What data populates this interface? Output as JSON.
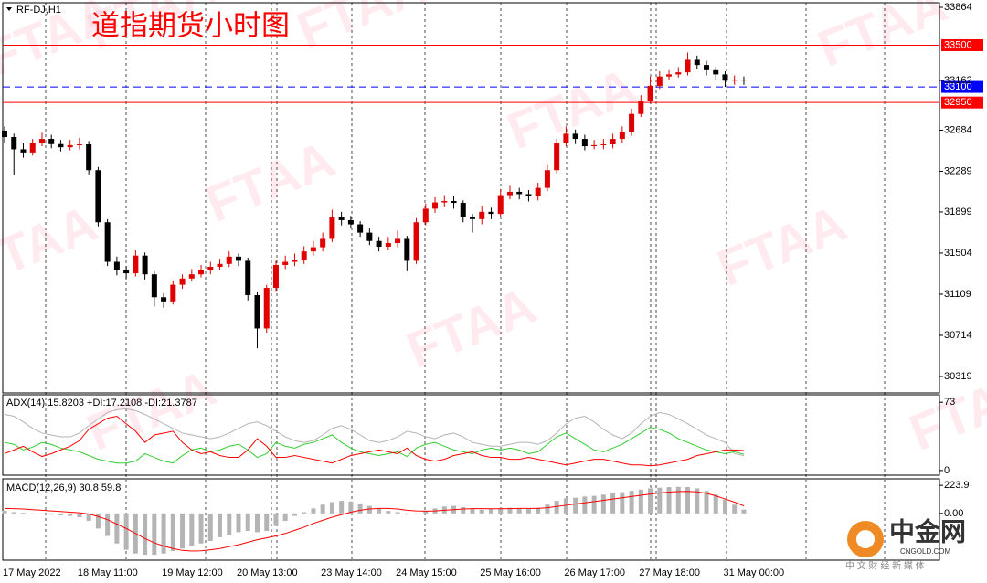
{
  "chart_data": [
    {
      "type": "candlestick",
      "title": "道指期货小时图",
      "subtitle": "RF-DJ,H1",
      "up_color": "#e00000",
      "down_color": "#000000",
      "categories": [
        "17 May 2022",
        null,
        null,
        null,
        null,
        null,
        null,
        null,
        "18 May 11:00",
        null,
        null,
        null,
        null,
        null,
        null,
        null,
        null,
        "19 May 12:00",
        null,
        null,
        null,
        null,
        null,
        null,
        null,
        "20 May 13:00",
        null,
        null,
        null,
        null,
        null,
        null,
        null,
        null,
        "23 May 14:00",
        null,
        null,
        null,
        null,
        null,
        null,
        null,
        "24 May 15:00",
        null,
        null,
        null,
        null,
        null,
        null,
        null,
        null,
        "25 May 16:00",
        null,
        null,
        null,
        null,
        null,
        null,
        null,
        null,
        "26 May 17:00",
        null,
        null,
        null,
        null,
        null,
        null,
        null,
        "27 May 18:00",
        null,
        null,
        null,
        null,
        null,
        null,
        null,
        null,
        "31 May 00:00",
        null,
        null
      ],
      "open": [
        32680,
        32618,
        32500,
        32470,
        32560,
        32600,
        32550,
        32520,
        32540,
        32548,
        32300,
        31800,
        31420,
        31340,
        31310,
        31480,
        31300,
        31080,
        31040,
        31200,
        31260,
        31300,
        31340,
        31372,
        31400,
        31470,
        31430,
        31100,
        30780,
        31170,
        31390,
        31420,
        31440,
        31520,
        31560,
        31640,
        31846,
        31820,
        31780,
        31700,
        31620,
        31565,
        31600,
        31640,
        31430,
        31800,
        31930,
        31990,
        32004,
        31986,
        31850,
        31830,
        31900,
        31880,
        32060,
        32092,
        32070,
        32048,
        32130,
        32300,
        32560,
        32650,
        32600,
        32530,
        32540,
        32548,
        32600,
        32662,
        32840,
        32969,
        33110,
        33200,
        33220,
        33240,
        33360,
        33310,
        33260,
        33220,
        33160,
        33170
      ],
      "high": [
        32720,
        32650,
        32560,
        32600,
        32660,
        32640,
        32590,
        32590,
        32610,
        32580,
        32330,
        31830,
        31470,
        31380,
        31530,
        31510,
        31330,
        31120,
        31240,
        31300,
        31350,
        31390,
        31420,
        31450,
        31520,
        31500,
        31460,
        31130,
        31200,
        31430,
        31480,
        31500,
        31570,
        31620,
        31700,
        31920,
        31900,
        31860,
        31810,
        31740,
        31660,
        31660,
        31720,
        31670,
        31840,
        31980,
        32040,
        32060,
        32050,
        32010,
        31880,
        31960,
        31940,
        32120,
        32150,
        32130,
        32110,
        32180,
        32350,
        32600,
        32720,
        32690,
        32640,
        32590,
        32600,
        32650,
        32720,
        32890,
        33020,
        33200,
        33250,
        33260,
        33290,
        33430,
        33400,
        33350,
        33290,
        33250,
        33210,
        33200
      ],
      "low": [
        32560,
        32250,
        32420,
        32440,
        32530,
        32510,
        32480,
        32490,
        32500,
        32260,
        31760,
        31380,
        31290,
        31260,
        31280,
        31250,
        30990,
        30980,
        31010,
        31160,
        31230,
        31270,
        31300,
        31340,
        31370,
        31380,
        31050,
        30590,
        30740,
        31140,
        31350,
        31380,
        31400,
        31480,
        31520,
        31610,
        31770,
        31740,
        31660,
        31580,
        31520,
        31530,
        31560,
        31330,
        31400,
        31770,
        31890,
        31950,
        31930,
        31800,
        31700,
        31780,
        31830,
        31850,
        32020,
        32020,
        32000,
        32010,
        32100,
        32270,
        32530,
        32550,
        32490,
        32500,
        32500,
        32510,
        32560,
        32630,
        32810,
        32940,
        33080,
        33170,
        33190,
        33210,
        33270,
        33210,
        33170,
        33100,
        33120,
        33120
      ],
      "close": [
        32618,
        32500,
        32470,
        32560,
        32600,
        32550,
        32520,
        32540,
        32548,
        32300,
        31800,
        31420,
        31340,
        31310,
        31480,
        31300,
        31080,
        31040,
        31200,
        31260,
        31300,
        31340,
        31372,
        31400,
        31470,
        31430,
        31100,
        30780,
        31170,
        31390,
        31420,
        31440,
        31520,
        31560,
        31640,
        31846,
        31820,
        31780,
        31700,
        31620,
        31565,
        31600,
        31640,
        31430,
        31800,
        31930,
        31990,
        32004,
        31986,
        31850,
        31830,
        31900,
        31880,
        32060,
        32092,
        32070,
        32048,
        32130,
        32300,
        32560,
        32650,
        32600,
        32530,
        32540,
        32548,
        32600,
        32662,
        32840,
        32969,
        33110,
        33200,
        33220,
        33240,
        33360,
        33310,
        33260,
        33220,
        33160,
        33170,
        33162
      ],
      "ylim": [
        30161,
        33908
      ],
      "yticks": [
        33864,
        32684,
        32289,
        31899,
        31504,
        31109,
        30714,
        30319
      ],
      "levels": [
        {
          "value": 33500,
          "color": "#ff0000",
          "style": "solid"
        },
        {
          "value": 32950,
          "color": "#ff0000",
          "style": "solid"
        },
        {
          "value": 33100,
          "color": "#0000ff",
          "style": "dashed"
        }
      ],
      "last_price": 33162
    },
    {
      "type": "line",
      "title": "ADX(14) 15.8203 +DI:17.2108 -DI:21.3787",
      "ylim": [
        -5,
        81
      ],
      "yticks": [
        73,
        0
      ],
      "series": [
        {
          "color": "#b4b4b4",
          "values": [
            60,
            58,
            52,
            45,
            40,
            38,
            36,
            36,
            40,
            48,
            55,
            62,
            65,
            66,
            64,
            60,
            55,
            50,
            45,
            40,
            38,
            36,
            34,
            36,
            40,
            45,
            50,
            52,
            48,
            42,
            36,
            32,
            30,
            32,
            38,
            45,
            48,
            44,
            38,
            32,
            30,
            32,
            36,
            42,
            40,
            36,
            34,
            38,
            40,
            36,
            30,
            28,
            26,
            26,
            28,
            30,
            30,
            28,
            32,
            40,
            50,
            56,
            58,
            52,
            44,
            38,
            34,
            40,
            50,
            58,
            62,
            60,
            55,
            50,
            44,
            38,
            34,
            30,
            18,
            15.8203
          ]
        },
        {
          "color": "#32cd32",
          "values": [
            30,
            28,
            22,
            25,
            30,
            28,
            24,
            22,
            20,
            16,
            12,
            10,
            8,
            8,
            10,
            18,
            14,
            10,
            8,
            16,
            22,
            24,
            20,
            22,
            26,
            28,
            22,
            14,
            18,
            30,
            26,
            24,
            28,
            30,
            34,
            38,
            30,
            24,
            20,
            18,
            16,
            18,
            20,
            15,
            24,
            28,
            30,
            26,
            22,
            20,
            18,
            22,
            24,
            22,
            24,
            22,
            18,
            20,
            28,
            36,
            40,
            34,
            28,
            22,
            20,
            24,
            28,
            34,
            40,
            46,
            44,
            40,
            34,
            30,
            26,
            22,
            20,
            18,
            20,
            17.2108
          ]
        },
        {
          "color": "#ff0000",
          "values": [
            18,
            22,
            26,
            20,
            15,
            18,
            22,
            26,
            32,
            44,
            50,
            56,
            58,
            50,
            42,
            30,
            38,
            40,
            42,
            30,
            22,
            18,
            20,
            16,
            14,
            14,
            22,
            34,
            26,
            14,
            14,
            16,
            14,
            12,
            10,
            8,
            12,
            16,
            18,
            20,
            22,
            20,
            18,
            24,
            16,
            12,
            10,
            12,
            16,
            18,
            20,
            16,
            14,
            14,
            12,
            12,
            14,
            12,
            10,
            8,
            6,
            8,
            10,
            12,
            12,
            10,
            8,
            6,
            6,
            5,
            6,
            8,
            10,
            12,
            16,
            18,
            20,
            22,
            22,
            21.3787
          ]
        }
      ]
    },
    {
      "type": "combo",
      "title": "MACD(12,26,9) 30.8 59.8",
      "ylim": [
        -373,
        276
      ],
      "yticks": [
        223.9,
        {
          "value": 0,
          "label": "0.00"
        }
      ],
      "series": [
        {
          "kind": "bar",
          "color": "#b4b4b4",
          "values": [
            20,
            10,
            5,
            0,
            -5,
            -10,
            -15,
            -20,
            -30,
            -60,
            -120,
            -180,
            -240,
            -290,
            -320,
            -330,
            -330,
            -320,
            -300,
            -280,
            -260,
            -240,
            -220,
            -190,
            -170,
            -150,
            -140,
            -150,
            -140,
            -100,
            -60,
            -20,
            10,
            40,
            70,
            90,
            100,
            95,
            80,
            60,
            40,
            20,
            10,
            -10,
            0,
            20,
            40,
            55,
            60,
            50,
            40,
            30,
            35,
            40,
            45,
            40,
            35,
            45,
            70,
            100,
            120,
            125,
            135,
            140,
            150,
            160,
            170,
            180,
            190,
            200,
            205,
            210,
            212,
            210,
            200,
            180,
            150,
            110,
            70,
            30.8
          ]
        },
        {
          "kind": "line",
          "color": "#ff0000",
          "values": [
            40,
            38,
            35,
            30,
            25,
            20,
            15,
            10,
            5,
            -5,
            -25,
            -50,
            -85,
            -120,
            -160,
            -200,
            -235,
            -260,
            -280,
            -295,
            -300,
            -298,
            -290,
            -280,
            -265,
            -250,
            -230,
            -210,
            -195,
            -180,
            -160,
            -135,
            -110,
            -80,
            -55,
            -30,
            -10,
            10,
            25,
            35,
            40,
            40,
            35,
            25,
            20,
            18,
            20,
            25,
            30,
            35,
            38,
            38,
            37,
            37,
            38,
            40,
            40,
            40,
            45,
            55,
            65,
            75,
            85,
            95,
            105,
            115,
            125,
            135,
            145,
            155,
            163,
            170,
            175,
            176,
            172,
            160,
            140,
            115,
            90,
            59.8
          ]
        }
      ]
    }
  ],
  "watermark": "FTAA",
  "logo": {
    "name": "中金网",
    "site": "CNGOLD.COM",
    "tagline": "中 文 财 经 新 媒 体"
  }
}
